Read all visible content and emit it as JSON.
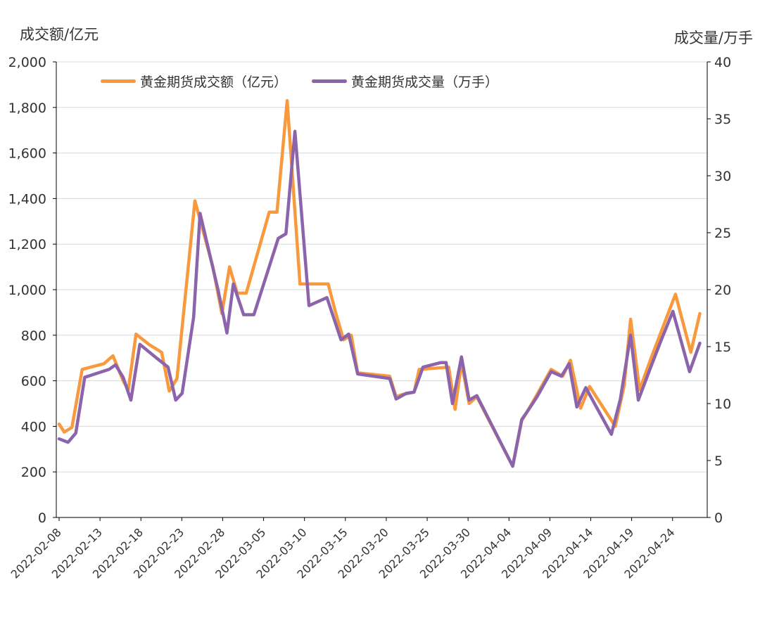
{
  "colors": {
    "amount": "#F7993C",
    "volume": "#8B64AC"
  },
  "axis_units": {
    "left": "成交额/亿元",
    "right": "成交量/万手"
  },
  "chart_data": {
    "type": "line",
    "xlabel": "",
    "ylabel": "",
    "legend_position": "top-left",
    "grid": true,
    "ylim": [
      0,
      2000
    ],
    "y2lim": [
      0,
      40
    ],
    "y_ticks": [
      "0",
      "200",
      "400",
      "600",
      "800",
      "1,000",
      "1,200",
      "1,400",
      "1,600",
      "1,800",
      "2,000"
    ],
    "y2_ticks": [
      "0",
      "5",
      "10",
      "15",
      "20",
      "25",
      "30",
      "35",
      "40"
    ],
    "x_tick_labels": [
      {
        "i": 0,
        "label": "2022-02-08"
      },
      {
        "i": 3,
        "label": "2022-02-13"
      },
      {
        "i": 6,
        "label": "2022-02-18"
      },
      {
        "i": 9,
        "label": "2022-02-23"
      },
      {
        "i": 12,
        "label": "2022-02-28"
      },
      {
        "i": 15,
        "label": "2022-03-05"
      },
      {
        "i": 18,
        "label": "2022-03-10"
      },
      {
        "i": 21,
        "label": "2022-03-15"
      },
      {
        "i": 24,
        "label": "2022-03-20"
      },
      {
        "i": 27,
        "label": "2022-03-25"
      },
      {
        "i": 30,
        "label": "2022-03-30"
      },
      {
        "i": 33,
        "label": "2022-04-04"
      },
      {
        "i": 36,
        "label": "2022-04-09"
      },
      {
        "i": 39,
        "label": "2022-04-14"
      },
      {
        "i": 42,
        "label": "2022-04-19"
      },
      {
        "i": 45,
        "label": "2022-04-24"
      }
    ],
    "n_points": 48,
    "series": [
      {
        "name": "黄金期货成交额（亿元）",
        "axis": "left",
        "points": [
          [
            0.0,
            410
          ],
          [
            0.4,
            375
          ],
          [
            1.0,
            395
          ],
          [
            1.8,
            650
          ],
          [
            3.5,
            675
          ],
          [
            4.2,
            710
          ],
          [
            5.0,
            600
          ],
          [
            5.4,
            560
          ],
          [
            6.0,
            805
          ],
          [
            7.0,
            760
          ],
          [
            8.0,
            725
          ],
          [
            8.6,
            555
          ],
          [
            9.2,
            610
          ],
          [
            10.6,
            1390
          ],
          [
            12.0,
            1100
          ],
          [
            12.7,
            895
          ],
          [
            13.3,
            1100
          ],
          [
            13.9,
            985
          ],
          [
            14.6,
            985
          ],
          [
            16.4,
            1340
          ],
          [
            17.0,
            1340
          ],
          [
            17.8,
            1830
          ],
          [
            18.8,
            1025
          ],
          [
            20.2,
            1025
          ],
          [
            21.0,
            1025
          ],
          [
            21.6,
            895
          ],
          [
            22.2,
            780
          ],
          [
            22.8,
            800
          ],
          [
            23.3,
            635
          ],
          [
            25.8,
            620
          ],
          [
            26.3,
            530
          ],
          [
            26.8,
            540
          ],
          [
            27.7,
            550
          ],
          [
            28.1,
            650
          ],
          [
            30.4,
            660
          ],
          [
            30.9,
            475
          ],
          [
            31.4,
            680
          ],
          [
            32.0,
            500
          ],
          [
            32.6,
            530
          ],
          [
            35.4,
            225
          ],
          [
            36.1,
            425
          ],
          [
            36.8,
            490
          ],
          [
            38.4,
            650
          ],
          [
            39.3,
            620
          ],
          [
            39.9,
            690
          ],
          [
            40.7,
            480
          ],
          [
            41.4,
            575
          ],
          [
            43.4,
            400
          ],
          [
            44.1,
            580
          ],
          [
            44.6,
            870
          ],
          [
            45.3,
            560
          ],
          [
            46.2,
            700
          ],
          [
            48.1,
            980
          ],
          [
            49.3,
            725
          ],
          [
            50.0,
            895
          ]
        ]
      },
      {
        "name": "黄金期货成交量（万手）",
        "axis": "right",
        "points": [
          [
            0.0,
            6.9
          ],
          [
            0.7,
            6.6
          ],
          [
            1.3,
            7.4
          ],
          [
            2.0,
            12.3
          ],
          [
            3.9,
            13.0
          ],
          [
            4.4,
            13.4
          ],
          [
            5.0,
            12.3
          ],
          [
            5.6,
            10.3
          ],
          [
            6.3,
            15.2
          ],
          [
            7.6,
            14.0
          ],
          [
            8.5,
            13.2
          ],
          [
            9.1,
            10.3
          ],
          [
            9.6,
            10.9
          ],
          [
            10.5,
            17.6
          ],
          [
            11.0,
            26.7
          ],
          [
            12.4,
            20.0
          ],
          [
            13.1,
            16.2
          ],
          [
            13.6,
            20.5
          ],
          [
            14.4,
            17.8
          ],
          [
            15.2,
            17.8
          ],
          [
            17.1,
            24.5
          ],
          [
            17.7,
            24.9
          ],
          [
            18.4,
            33.9
          ],
          [
            19.5,
            18.6
          ],
          [
            20.9,
            19.3
          ],
          [
            22.0,
            15.6
          ],
          [
            22.6,
            16.1
          ],
          [
            23.3,
            12.6
          ],
          [
            25.8,
            12.2
          ],
          [
            26.3,
            10.4
          ],
          [
            27.1,
            10.9
          ],
          [
            27.7,
            11.0
          ],
          [
            28.4,
            13.2
          ],
          [
            29.8,
            13.6
          ],
          [
            30.2,
            13.6
          ],
          [
            30.7,
            10.0
          ],
          [
            31.4,
            14.1
          ],
          [
            32.0,
            10.3
          ],
          [
            32.6,
            10.7
          ],
          [
            35.4,
            4.5
          ],
          [
            36.1,
            8.6
          ],
          [
            36.6,
            9.4
          ],
          [
            37.3,
            10.6
          ],
          [
            38.4,
            12.8
          ],
          [
            39.2,
            12.4
          ],
          [
            39.8,
            13.5
          ],
          [
            40.4,
            9.7
          ],
          [
            41.1,
            11.4
          ],
          [
            43.1,
            7.3
          ],
          [
            43.8,
            10.4
          ],
          [
            44.6,
            16.0
          ],
          [
            45.2,
            10.3
          ],
          [
            46.1,
            13.0
          ],
          [
            47.0,
            15.6
          ],
          [
            47.9,
            18.1
          ],
          [
            49.2,
            12.8
          ],
          [
            50.0,
            15.3
          ]
        ]
      }
    ]
  }
}
